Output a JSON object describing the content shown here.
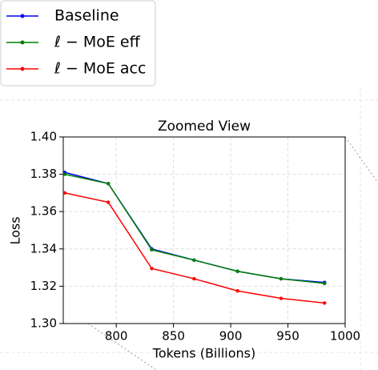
{
  "chart_data": {
    "type": "line",
    "title": "Zoomed View",
    "x_label": "Tokens (Billions)",
    "y_label": "Loss",
    "x": [
      755,
      793,
      831,
      868,
      906,
      944,
      982
    ],
    "series": [
      {
        "name": "Baseline",
        "color": "#0000ff",
        "values": [
          1.381,
          1.375,
          1.34,
          1.334,
          1.328,
          1.324,
          1.322
        ]
      },
      {
        "name": "ℓ − MoE eff",
        "color": "#008000",
        "values": [
          1.38,
          1.375,
          1.3395,
          1.334,
          1.328,
          1.324,
          1.3215
        ]
      },
      {
        "name": "ℓ − MoE acc",
        "color": "#ff0000",
        "values": [
          1.37,
          1.365,
          1.3295,
          1.324,
          1.3175,
          1.3135,
          1.311
        ]
      }
    ],
    "xlim": [
      753.7,
      1000
    ],
    "ylim": [
      1.3,
      1.4
    ],
    "xticks": [
      800,
      850,
      900,
      950,
      1000
    ],
    "yticks": [
      {
        "value": 1.3,
        "label": "1.30"
      },
      1.32,
      1.34,
      1.36,
      1.38,
      {
        "value": 1.4,
        "label": "1.40"
      }
    ],
    "grid": true
  }
}
